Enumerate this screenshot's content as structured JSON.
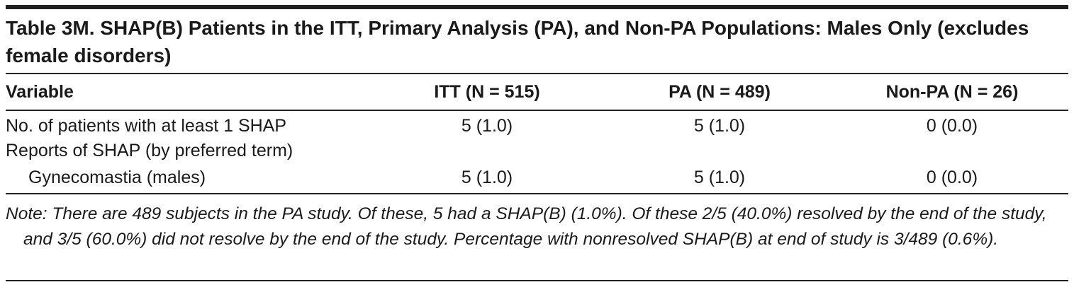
{
  "table": {
    "title": "Table 3M. SHAP(B) Patients in the ITT, Primary Analysis (PA), and Non-PA Populations: Males Only (excludes female disorders)",
    "columns": [
      "Variable",
      "ITT (N = 515)",
      "PA (N = 489)",
      "Non-PA (N = 26)"
    ],
    "rows": [
      [
        "No. of patients with at least 1 SHAP",
        "5 (1.0)",
        "5 (1.0)",
        "0 (0.0)"
      ],
      [
        "Reports of SHAP (by preferred term)"
      ],
      [
        "Gynecomastia (males)",
        "5 (1.0)",
        "5 (1.0)",
        "0 (0.0)"
      ]
    ],
    "note": "Note: There are 489 subjects in the PA study. Of these, 5 had a SHAP(B) (1.0%). Of these 2/5 (40.0%) resolved by the end of the study, and 3/5 (60.0%) did not resolve by the end of the study. Percentage with nonresolved SHAP(B) at end of study is 3/489 (0.6%)."
  }
}
